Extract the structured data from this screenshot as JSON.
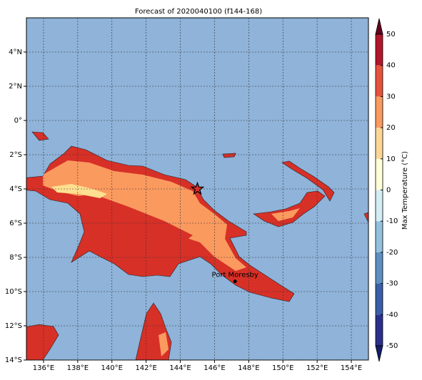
{
  "title": "Forecast of 2020040100 (f144-168)",
  "map": {
    "xlim": [
      135,
      155
    ],
    "ylim": [
      -14,
      6
    ],
    "xticks": [
      {
        "value": 136,
        "label": "136°E"
      },
      {
        "value": 138,
        "label": "138°E"
      },
      {
        "value": 140,
        "label": "140°E"
      },
      {
        "value": 142,
        "label": "142°E"
      },
      {
        "value": 144,
        "label": "144°E"
      },
      {
        "value": 146,
        "label": "146°E"
      },
      {
        "value": 148,
        "label": "148°E"
      },
      {
        "value": 150,
        "label": "150°E"
      },
      {
        "value": 152,
        "label": "152°E"
      },
      {
        "value": 154,
        "label": "154°E"
      }
    ],
    "yticks": [
      {
        "value": -14,
        "label": "14°S"
      },
      {
        "value": -12,
        "label": "12°S"
      },
      {
        "value": -10,
        "label": "10°S"
      },
      {
        "value": -8,
        "label": "8°S"
      },
      {
        "value": -6,
        "label": "6°S"
      },
      {
        "value": -4,
        "label": "4°S"
      },
      {
        "value": -2,
        "label": "2°S"
      },
      {
        "value": 0,
        "label": "0°"
      },
      {
        "value": 2,
        "label": "2°N"
      },
      {
        "value": 4,
        "label": "4°N"
      }
    ],
    "places": [
      {
        "label": "Port Moresby",
        "lon": 147.2,
        "lat": -9.4
      }
    ],
    "star": {
      "lon": 145.0,
      "lat": -4.0
    }
  },
  "colorbar": {
    "label": "Max Temperature (°C)",
    "ticks": [
      -50,
      -40,
      -30,
      -20,
      -10,
      0,
      10,
      20,
      30,
      40,
      50
    ],
    "colors": [
      "#2b2f8c",
      "#3a5fa8",
      "#5e8fc2",
      "#92c0dd",
      "#d4ecf4",
      "#fefed8",
      "#fdd797",
      "#fb9a5f",
      "#e6533a",
      "#b3162b"
    ]
  }
}
